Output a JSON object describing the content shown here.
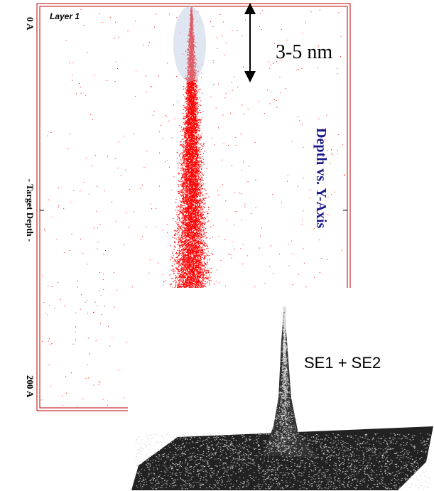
{
  "plot": {
    "top_label": "0 A",
    "side_label": "- Target Depth -",
    "bottom_label": "200 A",
    "layer_label": "Layer 1",
    "title": "Depth vs. Y-Axis"
  },
  "annotation": {
    "range": "3-5 nm"
  },
  "inset": {
    "label": "SE1 + SE2"
  }
}
